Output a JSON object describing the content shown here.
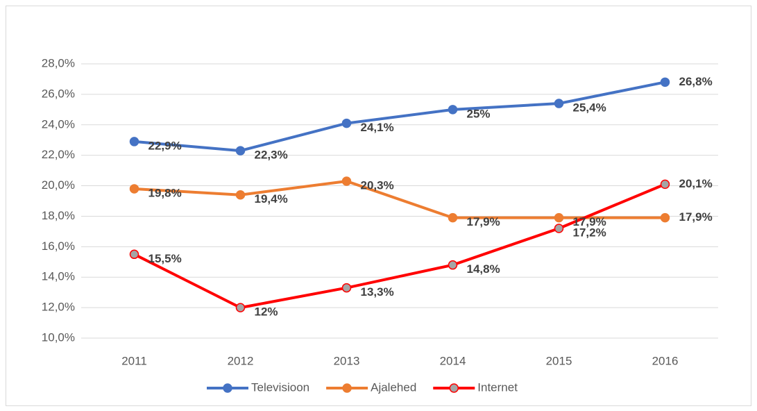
{
  "chart_data": {
    "type": "line",
    "categories": [
      "2011",
      "2012",
      "2013",
      "2014",
      "2015",
      "2016"
    ],
    "series": [
      {
        "name": "Televisioon",
        "color": "#4472c4",
        "marker_fill": "#4472c4",
        "values": [
          22.9,
          22.3,
          24.1,
          25,
          25.4,
          26.8
        ],
        "value_labels": [
          "22,9%",
          "22,3%",
          "24,1%",
          "25%",
          "25,4%",
          "26,8%"
        ]
      },
      {
        "name": "Ajalehed",
        "color": "#ed7d31",
        "marker_fill": "#ed7d31",
        "values": [
          19.8,
          19.4,
          20.3,
          17.9,
          17.9,
          17.9
        ],
        "value_labels": [
          "19,8%",
          "19,4%",
          "20,3%",
          "17,9%",
          "17,9%",
          "17,9%"
        ]
      },
      {
        "name": "Internet",
        "color": "#ff0000",
        "marker_fill": "#a5a5a5",
        "values": [
          15.5,
          12,
          13.3,
          14.8,
          17.2,
          20.1
        ],
        "value_labels": [
          "15,5%",
          "12%",
          "13,3%",
          "14,8%",
          "17,2%",
          "20,1%"
        ]
      }
    ],
    "ylim": [
      10,
      28
    ],
    "yticks": [
      {
        "value": 10,
        "label": "10,0%"
      },
      {
        "value": 12,
        "label": "12,0%"
      },
      {
        "value": 14,
        "label": "14,0%"
      },
      {
        "value": 16,
        "label": "16,0%"
      },
      {
        "value": 18,
        "label": "18,0%"
      },
      {
        "value": 20,
        "label": "20,0%"
      },
      {
        "value": 22,
        "label": "22,0%"
      },
      {
        "value": 24,
        "label": "24,0%"
      },
      {
        "value": 26,
        "label": "26,0%"
      },
      {
        "value": 28,
        "label": "28,0%"
      }
    ],
    "grid": true,
    "legend": "bottom"
  }
}
